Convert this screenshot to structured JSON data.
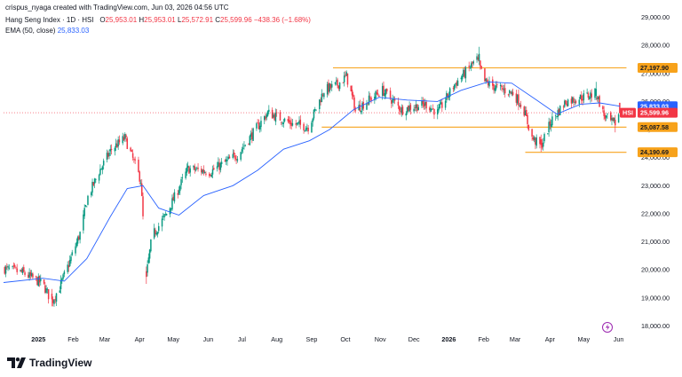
{
  "header": {
    "credit": "crispus_nyaga created with TradingView.com, Jun 03, 2026 04:56 UTC",
    "symbol": "Hang Seng Index · 1D · HSI",
    "ohlc": {
      "o_label": "O",
      "o": "25,953.01",
      "h_label": "H",
      "h": "25,953.01",
      "l_label": "L",
      "l": "25,572.91",
      "c_label": "C",
      "c": "25,599.96",
      "change": "−438.36 (−1.68%)"
    },
    "ema_label": "EMA (50, close)",
    "ema_value": "25,833.03"
  },
  "brand": {
    "name": "TradingView"
  },
  "colors": {
    "up": "#089981",
    "down": "#f23645",
    "ema": "#2962ff",
    "level": "#f7a21b",
    "last_price_line": "#f23645",
    "axis_text": "#131722"
  },
  "chart_data": {
    "type": "candlestick",
    "timeframe": "1D",
    "ylim": [
      17800,
      29200
    ],
    "y_ticks": [
      18000,
      19000,
      20000,
      21000,
      22000,
      23000,
      24000,
      25000,
      26000,
      27000,
      28000,
      29000
    ],
    "y_tick_labels": [
      "18,000.00",
      "19,000.00",
      "20,000.00",
      "21,000.00",
      "22,000.00",
      "23,000.00",
      "24,000.00",
      "25,000.00",
      "26,000.00",
      "27,000.00",
      "28,000.00",
      "29,000.00"
    ],
    "x_ticks": [
      {
        "label": "2025",
        "bold": true,
        "date": "2025-01-01"
      },
      {
        "label": "Feb",
        "bold": false,
        "date": "2025-02-01"
      },
      {
        "label": "Mar",
        "bold": false,
        "date": "2025-03-01"
      },
      {
        "label": "Apr",
        "bold": false,
        "date": "2025-04-01"
      },
      {
        "label": "May",
        "bold": false,
        "date": "2025-05-01"
      },
      {
        "label": "Jun",
        "bold": false,
        "date": "2025-06-01"
      },
      {
        "label": "Jul",
        "bold": false,
        "date": "2025-07-01"
      },
      {
        "label": "Aug",
        "bold": false,
        "date": "2025-08-01"
      },
      {
        "label": "Sep",
        "bold": false,
        "date": "2025-09-01"
      },
      {
        "label": "Oct",
        "bold": false,
        "date": "2025-10-01"
      },
      {
        "label": "Nov",
        "bold": false,
        "date": "2025-11-01"
      },
      {
        "label": "Dec",
        "bold": false,
        "date": "2025-12-01"
      },
      {
        "label": "2026",
        "bold": true,
        "date": "2026-01-01"
      },
      {
        "label": "Feb",
        "bold": false,
        "date": "2026-02-01"
      },
      {
        "label": "Mar",
        "bold": false,
        "date": "2026-03-01"
      },
      {
        "label": "Apr",
        "bold": false,
        "date": "2026-04-01"
      },
      {
        "label": "May",
        "bold": false,
        "date": "2026-05-01"
      },
      {
        "label": "Jun",
        "bold": false,
        "date": "2026-06-01"
      }
    ],
    "x_range": [
      "2024-12-01",
      "2026-06-10"
    ],
    "anchors": [
      [
        "2024-12-01",
        20050
      ],
      [
        "2024-12-18",
        19900
      ],
      [
        "2025-01-05",
        19500
      ],
      [
        "2025-01-13",
        18850
      ],
      [
        "2025-01-20",
        19400
      ],
      [
        "2025-01-28",
        20200
      ],
      [
        "2025-02-07",
        21300
      ],
      [
        "2025-02-14",
        22600
      ],
      [
        "2025-02-24",
        23500
      ],
      [
        "2025-03-07",
        24300
      ],
      [
        "2025-03-19",
        24700
      ],
      [
        "2025-04-02",
        23200
      ],
      [
        "2025-04-07",
        19800
      ],
      [
        "2025-04-12",
        21200
      ],
      [
        "2025-04-25",
        22000
      ],
      [
        "2025-05-14",
        23600
      ],
      [
        "2025-06-03",
        23500
      ],
      [
        "2025-06-27",
        24100
      ],
      [
        "2025-07-24",
        25600
      ],
      [
        "2025-08-15",
        25200
      ],
      [
        "2025-08-29",
        25100
      ],
      [
        "2025-09-12",
        26400
      ],
      [
        "2025-09-24",
        26600
      ],
      [
        "2025-10-02",
        26900
      ],
      [
        "2025-10-10",
        25700
      ],
      [
        "2025-10-20",
        26000
      ],
      [
        "2025-11-03",
        26400
      ],
      [
        "2025-11-20",
        25700
      ],
      [
        "2025-11-28",
        25800
      ],
      [
        "2025-12-12",
        25900
      ],
      [
        "2025-12-22",
        25600
      ],
      [
        "2026-01-06",
        26600
      ],
      [
        "2026-01-26",
        27500
      ],
      [
        "2026-02-02",
        26700
      ],
      [
        "2026-02-12",
        26500
      ],
      [
        "2026-02-27",
        26300
      ],
      [
        "2026-03-08",
        25800
      ],
      [
        "2026-03-16",
        24700
      ],
      [
        "2026-03-24",
        24400
      ],
      [
        "2026-04-02",
        25300
      ],
      [
        "2026-04-15",
        26000
      ],
      [
        "2026-05-04",
        26200
      ],
      [
        "2026-05-12",
        26300
      ],
      [
        "2026-05-19",
        25500
      ],
      [
        "2026-05-27",
        25200
      ],
      [
        "2026-06-02",
        25600
      ]
    ],
    "highlights": [
      {
        "date": "2025-01-13",
        "low": 18700
      },
      {
        "date": "2025-04-07",
        "low": 19500
      },
      {
        "date": "2026-01-28",
        "high": 27950
      },
      {
        "date": "2026-03-24",
        "low": 24200
      },
      {
        "date": "2026-05-12",
        "high": 26700
      },
      {
        "date": "2026-05-29",
        "low": 24900
      }
    ],
    "ema": {
      "name": "EMA (50, close)",
      "points": [
        [
          "2024-12-01",
          19550
        ],
        [
          "2025-01-05",
          19700
        ],
        [
          "2025-01-24",
          19600
        ],
        [
          "2025-02-13",
          20400
        ],
        [
          "2025-03-06",
          21900
        ],
        [
          "2025-03-21",
          22900
        ],
        [
          "2025-04-04",
          23000
        ],
        [
          "2025-04-18",
          22200
        ],
        [
          "2025-05-06",
          21950
        ],
        [
          "2025-05-28",
          22650
        ],
        [
          "2025-06-23",
          23000
        ],
        [
          "2025-07-15",
          23550
        ],
        [
          "2025-08-07",
          24300
        ],
        [
          "2025-08-30",
          24600
        ],
        [
          "2025-09-17",
          25000
        ],
        [
          "2025-10-08",
          25700
        ],
        [
          "2025-10-31",
          26150
        ],
        [
          "2025-11-25",
          26050
        ],
        [
          "2025-12-22",
          26000
        ],
        [
          "2026-01-12",
          26400
        ],
        [
          "2026-02-05",
          26700
        ],
        [
          "2026-02-26",
          26650
        ],
        [
          "2026-03-20",
          26050
        ],
        [
          "2026-04-07",
          25550
        ],
        [
          "2026-04-28",
          25900
        ],
        [
          "2026-05-15",
          25950
        ],
        [
          "2026-06-02",
          25833
        ]
      ]
    },
    "levels": [
      {
        "value": 27197.9,
        "label": "27,197.90",
        "from": "2025-09-20",
        "to": "2026-06-08"
      },
      {
        "value": 25087.58,
        "label": "25,087.58",
        "from": "2025-09-10",
        "to": "2026-06-08"
      },
      {
        "value": 24190.69,
        "label": "24,190.69",
        "from": "2026-03-10",
        "to": "2026-06-08"
      }
    ],
    "price_tags": [
      {
        "value": 25833.03,
        "label": "25,833.03",
        "prefix": "",
        "color": "#2962ff"
      },
      {
        "value": 25599.96,
        "label": "25,599.96",
        "prefix": "HSI",
        "color": "#f23645"
      }
    ],
    "last_price": 25599.96
  }
}
